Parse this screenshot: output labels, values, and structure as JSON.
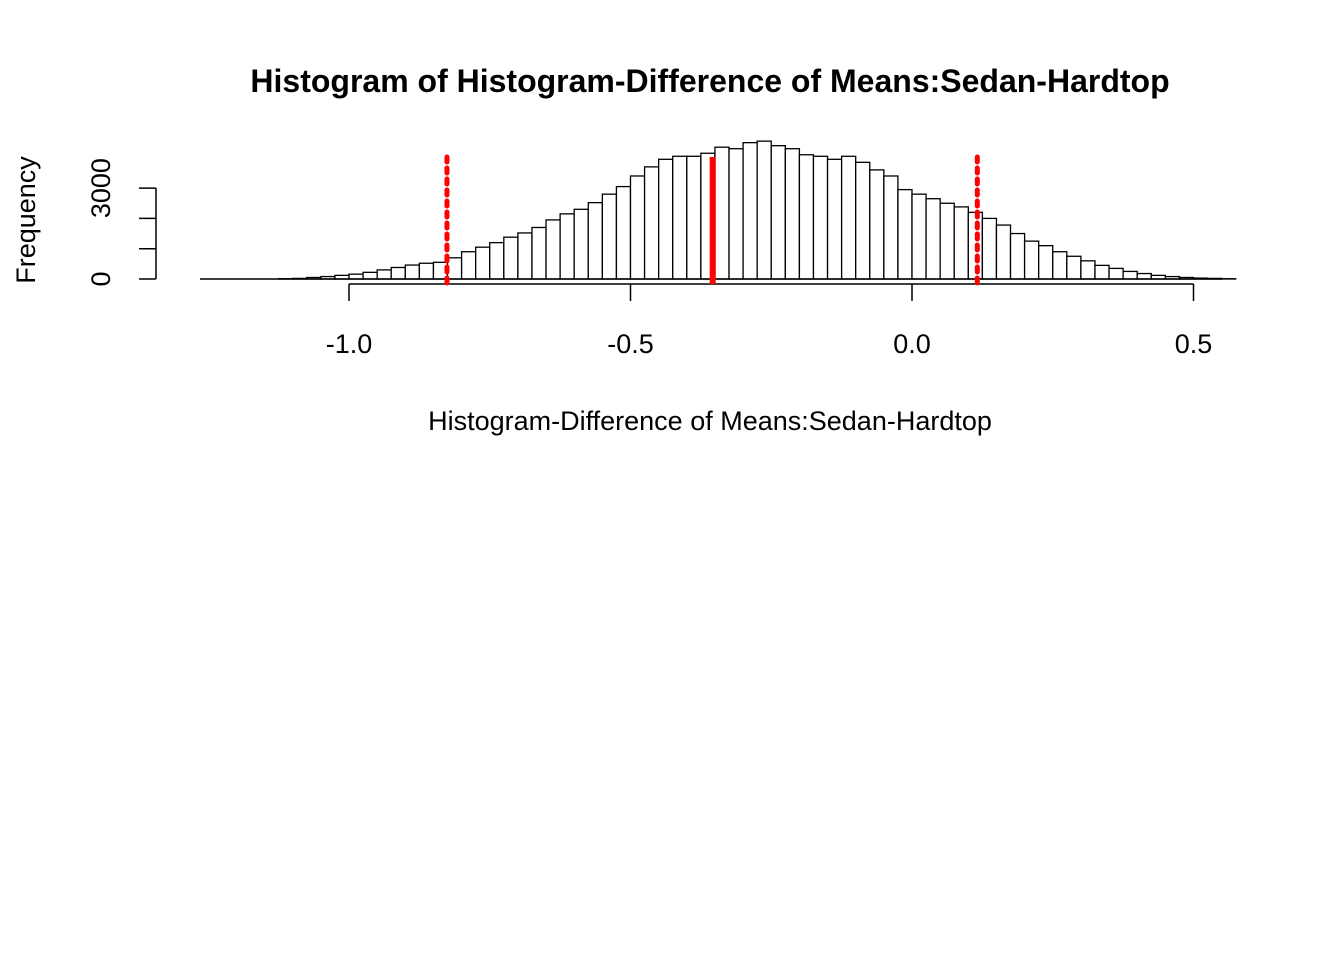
{
  "chart_data": {
    "type": "bar",
    "subtype": "histogram",
    "title": "Histogram of  Histogram-Difference of Means:Sedan-Hardtop",
    "xlabel": "Histogram-Difference of Means:Sedan-Hardtop",
    "ylabel": "Frequency",
    "xlim": [
      -1.265,
      0.55
    ],
    "ylim": [
      0,
      5000
    ],
    "x_ticks": [
      -1.0,
      -0.5,
      0.0,
      0.5
    ],
    "x_tick_labels": [
      "-1.0",
      "-0.5",
      "0.0",
      "0.5"
    ],
    "y_ticks": [
      0,
      1000,
      2000,
      3000
    ],
    "y_tick_labels": [
      "0",
      "",
      "",
      "3000"
    ],
    "bin_width": 0.025,
    "bin_start": -1.25,
    "counts": [
      0,
      0,
      0,
      0,
      0,
      10,
      20,
      50,
      80,
      120,
      160,
      220,
      300,
      380,
      460,
      520,
      550,
      700,
      900,
      1050,
      1200,
      1380,
      1520,
      1700,
      1950,
      2150,
      2300,
      2520,
      2800,
      3050,
      3400,
      3700,
      3950,
      4050,
      4050,
      4150,
      4350,
      4300,
      4500,
      4550,
      4400,
      4300,
      4100,
      4050,
      3950,
      4050,
      3850,
      3600,
      3400,
      2950,
      2800,
      2650,
      2500,
      2380,
      2200,
      2000,
      1780,
      1500,
      1250,
      1100,
      900,
      750,
      600,
      450,
      350,
      250,
      180,
      120,
      80,
      50,
      30,
      20,
      10,
      0,
      0,
      0,
      0,
      0,
      0,
      0,
      0
    ],
    "vlines": [
      {
        "x": -0.354,
        "style": "solid",
        "color": "#ff0000"
      },
      {
        "x": -0.826,
        "style": "dotted",
        "color": "#ff0000"
      },
      {
        "x": 0.116,
        "style": "dotted",
        "color": "#ff0000"
      }
    ],
    "bar_fill": "#ffffff",
    "bar_stroke": "#000000",
    "grid": false
  }
}
